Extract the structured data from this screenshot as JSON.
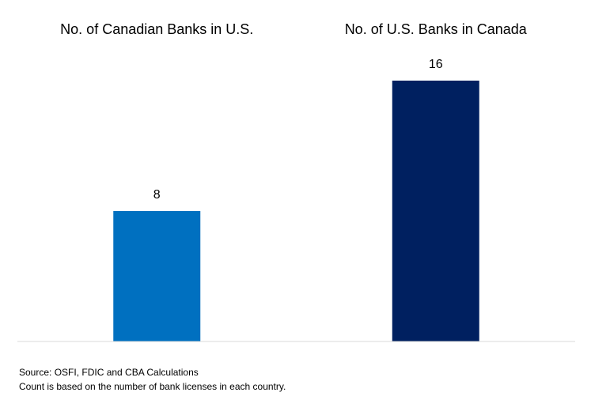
{
  "chart_data": {
    "type": "bar",
    "categories": [
      "No. of Canadian Banks in U.S.",
      "No. of U.S. Banks in Canada"
    ],
    "values": [
      8,
      16
    ],
    "colors": [
      "#0070c0",
      "#002060"
    ],
    "ylim": [
      0,
      16
    ],
    "notes": [
      "Source: OSFI, FDIC and CBA Calculations",
      "Count is based on the number of bank licenses in each country."
    ]
  }
}
